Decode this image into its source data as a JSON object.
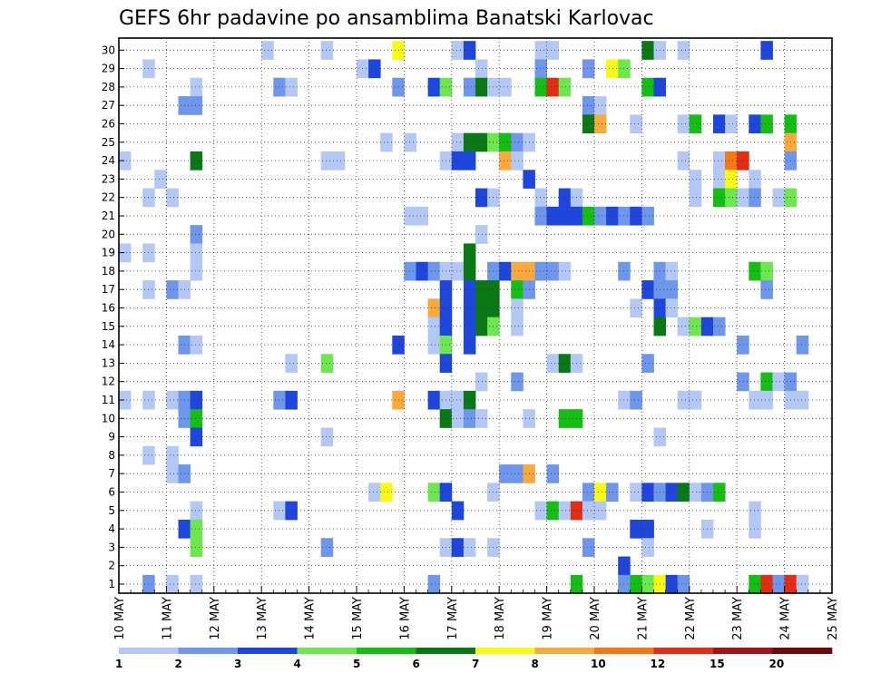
{
  "chart_data": {
    "type": "heatmap",
    "title": "GEFS 6hr padavine po ansamblima Banatski Karlovac",
    "xlabel": "",
    "ylabel": "",
    "x_tick_labels": [
      "10 MAY",
      "11 MAY",
      "12 MAY",
      "13 MAY",
      "14 MAY",
      "15 MAY",
      "16 MAY",
      "17 MAY",
      "18 MAY",
      "19 MAY",
      "20 MAY",
      "21 MAY",
      "22 MAY",
      "23 MAY",
      "24 MAY",
      "25 MAY"
    ],
    "steps_per_day": 4,
    "y_range": [
      1,
      30
    ],
    "y_ticks": [
      1,
      2,
      3,
      4,
      5,
      6,
      7,
      8,
      9,
      10,
      11,
      12,
      13,
      14,
      15,
      16,
      17,
      18,
      19,
      20,
      21,
      22,
      23,
      24,
      25,
      26,
      27,
      28,
      29,
      30
    ],
    "grid": true,
    "legend": {
      "position": "bottom",
      "tick_labels": [
        "1",
        "2",
        "3",
        "4",
        "5",
        "6",
        "7",
        "8",
        "10",
        "12",
        "15",
        "20"
      ],
      "colors": [
        "#b4c8f5",
        "#6e96eb",
        "#1e46dc",
        "#6ee650",
        "#14be14",
        "#0a7814",
        "#fafa14",
        "#faaa3c",
        "#f57814",
        "#e12d14",
        "#a01414",
        "#6e0a0a"
      ]
    },
    "cells": [
      [
        12,
        30,
        0
      ],
      [
        17,
        30,
        0
      ],
      [
        23,
        30,
        6
      ],
      [
        28,
        30,
        0
      ],
      [
        29,
        30,
        2
      ],
      [
        35,
        30,
        0
      ],
      [
        36,
        30,
        0
      ],
      [
        44,
        30,
        5
      ],
      [
        45,
        30,
        0
      ],
      [
        47,
        30,
        0
      ],
      [
        54,
        30,
        2
      ],
      [
        2,
        29,
        0
      ],
      [
        20,
        29,
        0
      ],
      [
        21,
        29,
        2
      ],
      [
        30,
        29,
        0
      ],
      [
        35,
        29,
        1
      ],
      [
        39,
        29,
        1
      ],
      [
        41,
        29,
        6
      ],
      [
        42,
        29,
        3
      ],
      [
        6,
        28,
        0
      ],
      [
        13,
        28,
        1
      ],
      [
        14,
        28,
        0
      ],
      [
        23,
        28,
        1
      ],
      [
        26,
        28,
        2
      ],
      [
        27,
        28,
        3
      ],
      [
        29,
        28,
        1
      ],
      [
        30,
        28,
        5
      ],
      [
        31,
        28,
        0
      ],
      [
        32,
        28,
        0
      ],
      [
        35,
        28,
        4
      ],
      [
        36,
        28,
        9
      ],
      [
        37,
        28,
        3
      ],
      [
        44,
        28,
        4
      ],
      [
        45,
        28,
        2
      ],
      [
        5,
        27,
        1
      ],
      [
        6,
        27,
        1
      ],
      [
        39,
        27,
        1
      ],
      [
        40,
        27,
        0
      ],
      [
        39,
        26,
        5
      ],
      [
        40,
        26,
        7
      ],
      [
        43,
        26,
        0
      ],
      [
        47,
        26,
        0
      ],
      [
        48,
        26,
        4
      ],
      [
        50,
        26,
        2
      ],
      [
        51,
        26,
        0
      ],
      [
        53,
        26,
        2
      ],
      [
        54,
        26,
        4
      ],
      [
        56,
        26,
        4
      ],
      [
        22,
        25,
        0
      ],
      [
        24,
        25,
        0
      ],
      [
        28,
        25,
        0
      ],
      [
        29,
        25,
        5
      ],
      [
        30,
        25,
        5
      ],
      [
        31,
        25,
        3
      ],
      [
        32,
        25,
        4
      ],
      [
        33,
        25,
        1
      ],
      [
        34,
        25,
        0
      ],
      [
        56,
        25,
        7
      ],
      [
        0,
        24,
        0
      ],
      [
        6,
        24,
        5
      ],
      [
        17,
        24,
        0
      ],
      [
        18,
        24,
        0
      ],
      [
        27,
        24,
        0
      ],
      [
        28,
        24,
        2
      ],
      [
        29,
        24,
        2
      ],
      [
        32,
        24,
        7
      ],
      [
        33,
        24,
        0
      ],
      [
        47,
        24,
        0
      ],
      [
        50,
        24,
        0
      ],
      [
        51,
        24,
        8
      ],
      [
        52,
        24,
        9
      ],
      [
        56,
        24,
        1
      ],
      [
        3,
        23,
        0
      ],
      [
        34,
        23,
        2
      ],
      [
        48,
        23,
        0
      ],
      [
        50,
        23,
        0
      ],
      [
        51,
        23,
        6
      ],
      [
        53,
        23,
        0
      ],
      [
        2,
        22,
        0
      ],
      [
        4,
        22,
        0
      ],
      [
        30,
        22,
        2
      ],
      [
        31,
        22,
        0
      ],
      [
        35,
        22,
        0
      ],
      [
        37,
        22,
        2
      ],
      [
        38,
        22,
        0
      ],
      [
        48,
        22,
        0
      ],
      [
        50,
        22,
        4
      ],
      [
        51,
        22,
        3
      ],
      [
        52,
        22,
        0
      ],
      [
        53,
        22,
        1
      ],
      [
        55,
        22,
        0
      ],
      [
        56,
        22,
        3
      ],
      [
        24,
        21,
        0
      ],
      [
        25,
        21,
        0
      ],
      [
        35,
        21,
        1
      ],
      [
        36,
        21,
        2
      ],
      [
        37,
        21,
        2
      ],
      [
        38,
        21,
        2
      ],
      [
        39,
        21,
        4
      ],
      [
        40,
        21,
        1
      ],
      [
        41,
        21,
        2
      ],
      [
        42,
        21,
        1
      ],
      [
        43,
        21,
        2
      ],
      [
        44,
        21,
        1
      ],
      [
        6,
        20,
        1
      ],
      [
        30,
        20,
        0
      ],
      [
        0,
        19,
        0
      ],
      [
        2,
        19,
        0
      ],
      [
        6,
        19,
        0
      ],
      [
        29,
        19,
        5
      ],
      [
        6,
        18,
        0
      ],
      [
        24,
        18,
        1
      ],
      [
        25,
        18,
        2
      ],
      [
        26,
        18,
        1
      ],
      [
        27,
        18,
        0
      ],
      [
        28,
        18,
        0
      ],
      [
        29,
        18,
        5
      ],
      [
        31,
        18,
        1
      ],
      [
        32,
        18,
        2
      ],
      [
        33,
        18,
        7
      ],
      [
        34,
        18,
        7
      ],
      [
        35,
        18,
        1
      ],
      [
        36,
        18,
        1
      ],
      [
        37,
        18,
        0
      ],
      [
        42,
        18,
        1
      ],
      [
        45,
        18,
        1
      ],
      [
        46,
        18,
        0
      ],
      [
        53,
        18,
        4
      ],
      [
        54,
        18,
        3
      ],
      [
        2,
        17,
        0
      ],
      [
        4,
        17,
        1
      ],
      [
        5,
        17,
        0
      ],
      [
        27,
        17,
        2
      ],
      [
        29,
        17,
        2
      ],
      [
        30,
        17,
        5
      ],
      [
        31,
        17,
        5
      ],
      [
        33,
        17,
        4
      ],
      [
        34,
        17,
        1
      ],
      [
        44,
        17,
        2
      ],
      [
        45,
        17,
        1
      ],
      [
        46,
        17,
        1
      ],
      [
        54,
        17,
        1
      ],
      [
        26,
        16,
        7
      ],
      [
        27,
        16,
        2
      ],
      [
        29,
        16,
        2
      ],
      [
        30,
        16,
        5
      ],
      [
        31,
        16,
        5
      ],
      [
        33,
        16,
        0
      ],
      [
        43,
        16,
        0
      ],
      [
        45,
        16,
        2
      ],
      [
        46,
        16,
        0
      ],
      [
        26,
        15,
        0
      ],
      [
        27,
        15,
        2
      ],
      [
        29,
        15,
        2
      ],
      [
        30,
        15,
        5
      ],
      [
        31,
        15,
        3
      ],
      [
        33,
        15,
        0
      ],
      [
        45,
        15,
        5
      ],
      [
        47,
        15,
        0
      ],
      [
        48,
        15,
        3
      ],
      [
        49,
        15,
        2
      ],
      [
        50,
        15,
        1
      ],
      [
        5,
        14,
        1
      ],
      [
        6,
        14,
        0
      ],
      [
        23,
        14,
        2
      ],
      [
        26,
        14,
        0
      ],
      [
        27,
        14,
        3
      ],
      [
        29,
        14,
        2
      ],
      [
        52,
        14,
        1
      ],
      [
        57,
        14,
        1
      ],
      [
        14,
        13,
        0
      ],
      [
        17,
        13,
        3
      ],
      [
        27,
        13,
        2
      ],
      [
        36,
        13,
        0
      ],
      [
        37,
        13,
        5
      ],
      [
        38,
        13,
        0
      ],
      [
        44,
        13,
        1
      ],
      [
        30,
        12,
        0
      ],
      [
        33,
        12,
        1
      ],
      [
        52,
        12,
        1
      ],
      [
        54,
        12,
        4
      ],
      [
        55,
        12,
        0
      ],
      [
        56,
        12,
        1
      ],
      [
        0,
        11,
        0
      ],
      [
        2,
        11,
        0
      ],
      [
        4,
        11,
        0
      ],
      [
        5,
        11,
        1
      ],
      [
        6,
        11,
        2
      ],
      [
        13,
        11,
        1
      ],
      [
        14,
        11,
        2
      ],
      [
        23,
        11,
        7
      ],
      [
        26,
        11,
        2
      ],
      [
        27,
        11,
        0
      ],
      [
        28,
        11,
        0
      ],
      [
        29,
        11,
        5
      ],
      [
        42,
        11,
        0
      ],
      [
        43,
        11,
        1
      ],
      [
        47,
        11,
        0
      ],
      [
        48,
        11,
        0
      ],
      [
        53,
        11,
        0
      ],
      [
        54,
        11,
        0
      ],
      [
        56,
        11,
        0
      ],
      [
        57,
        11,
        0
      ],
      [
        5,
        10,
        1
      ],
      [
        6,
        10,
        4
      ],
      [
        27,
        10,
        5
      ],
      [
        28,
        10,
        0
      ],
      [
        29,
        10,
        1
      ],
      [
        30,
        10,
        0
      ],
      [
        34,
        10,
        0
      ],
      [
        37,
        10,
        4
      ],
      [
        38,
        10,
        4
      ],
      [
        6,
        9,
        2
      ],
      [
        17,
        9,
        0
      ],
      [
        45,
        9,
        0
      ],
      [
        2,
        8,
        0
      ],
      [
        4,
        8,
        0
      ],
      [
        4,
        7,
        0
      ],
      [
        5,
        7,
        1
      ],
      [
        32,
        7,
        1
      ],
      [
        33,
        7,
        1
      ],
      [
        34,
        7,
        7
      ],
      [
        36,
        7,
        1
      ],
      [
        21,
        6,
        0
      ],
      [
        22,
        6,
        6
      ],
      [
        26,
        6,
        3
      ],
      [
        27,
        6,
        2
      ],
      [
        31,
        6,
        0
      ],
      [
        39,
        6,
        1
      ],
      [
        40,
        6,
        6
      ],
      [
        41,
        6,
        1
      ],
      [
        43,
        6,
        0
      ],
      [
        44,
        6,
        2
      ],
      [
        45,
        6,
        1
      ],
      [
        46,
        6,
        2
      ],
      [
        47,
        6,
        5
      ],
      [
        48,
        6,
        0
      ],
      [
        49,
        6,
        1
      ],
      [
        50,
        6,
        4
      ],
      [
        6,
        5,
        0
      ],
      [
        13,
        5,
        0
      ],
      [
        14,
        5,
        2
      ],
      [
        28,
        5,
        2
      ],
      [
        35,
        5,
        0
      ],
      [
        36,
        5,
        4
      ],
      [
        37,
        5,
        0
      ],
      [
        38,
        5,
        9
      ],
      [
        39,
        5,
        0
      ],
      [
        40,
        5,
        0
      ],
      [
        53,
        5,
        0
      ],
      [
        5,
        4,
        2
      ],
      [
        6,
        4,
        3
      ],
      [
        43,
        4,
        2
      ],
      [
        44,
        4,
        2
      ],
      [
        49,
        4,
        0
      ],
      [
        53,
        4,
        0
      ],
      [
        6,
        3,
        3
      ],
      [
        17,
        3,
        1
      ],
      [
        27,
        3,
        0
      ],
      [
        28,
        3,
        2
      ],
      [
        29,
        3,
        0
      ],
      [
        31,
        3,
        0
      ],
      [
        39,
        3,
        1
      ],
      [
        44,
        3,
        0
      ],
      [
        42,
        2,
        2
      ],
      [
        2,
        1,
        1
      ],
      [
        4,
        1,
        0
      ],
      [
        6,
        1,
        0
      ],
      [
        26,
        1,
        1
      ],
      [
        38,
        1,
        4
      ],
      [
        42,
        1,
        1
      ],
      [
        43,
        1,
        4
      ],
      [
        44,
        1,
        3
      ],
      [
        45,
        1,
        6
      ],
      [
        46,
        1,
        2
      ],
      [
        47,
        1,
        1
      ],
      [
        53,
        1,
        4
      ],
      [
        54,
        1,
        9
      ],
      [
        55,
        1,
        1
      ],
      [
        56,
        1,
        9
      ],
      [
        57,
        1,
        0
      ]
    ]
  }
}
